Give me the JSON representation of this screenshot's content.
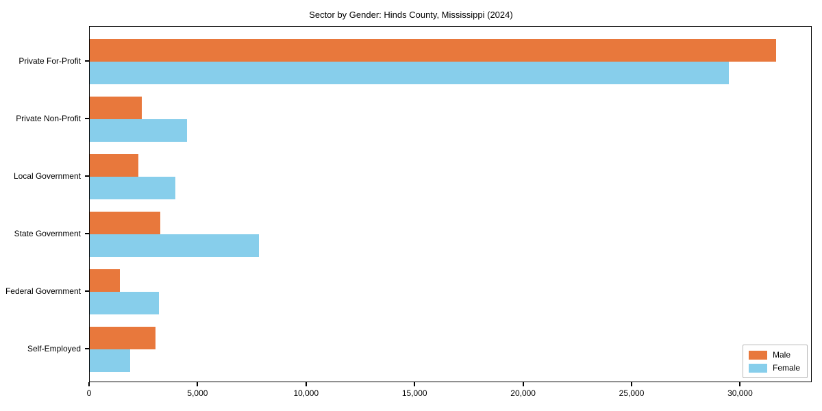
{
  "chart_data": {
    "type": "bar",
    "orientation": "horizontal",
    "title": "Sector by Gender: Hinds County, Mississippi (2024)",
    "categories": [
      "Private For-Profit",
      "Private Non-Profit",
      "Local Government",
      "State Government",
      "Federal Government",
      "Self-Employed"
    ],
    "series": [
      {
        "name": "Male",
        "color": "#e8783c",
        "values": [
          31700,
          2400,
          2250,
          3250,
          1400,
          3050
        ]
      },
      {
        "name": "Female",
        "color": "#87ceeb",
        "values": [
          29500,
          4500,
          3950,
          7800,
          3200,
          1850
        ]
      }
    ],
    "xlabel": "",
    "ylabel": "",
    "xlim": [
      0,
      33300
    ],
    "x_ticks": [
      {
        "value": 0,
        "label": "0"
      },
      {
        "value": 5000,
        "label": "5,000"
      },
      {
        "value": 10000,
        "label": "10,000"
      },
      {
        "value": 15000,
        "label": "15,000"
      },
      {
        "value": 20000,
        "label": "20,000"
      },
      {
        "value": 25000,
        "label": "25,000"
      },
      {
        "value": 30000,
        "label": "30,000"
      }
    ],
    "grid": false,
    "legend_position": "lower right"
  }
}
